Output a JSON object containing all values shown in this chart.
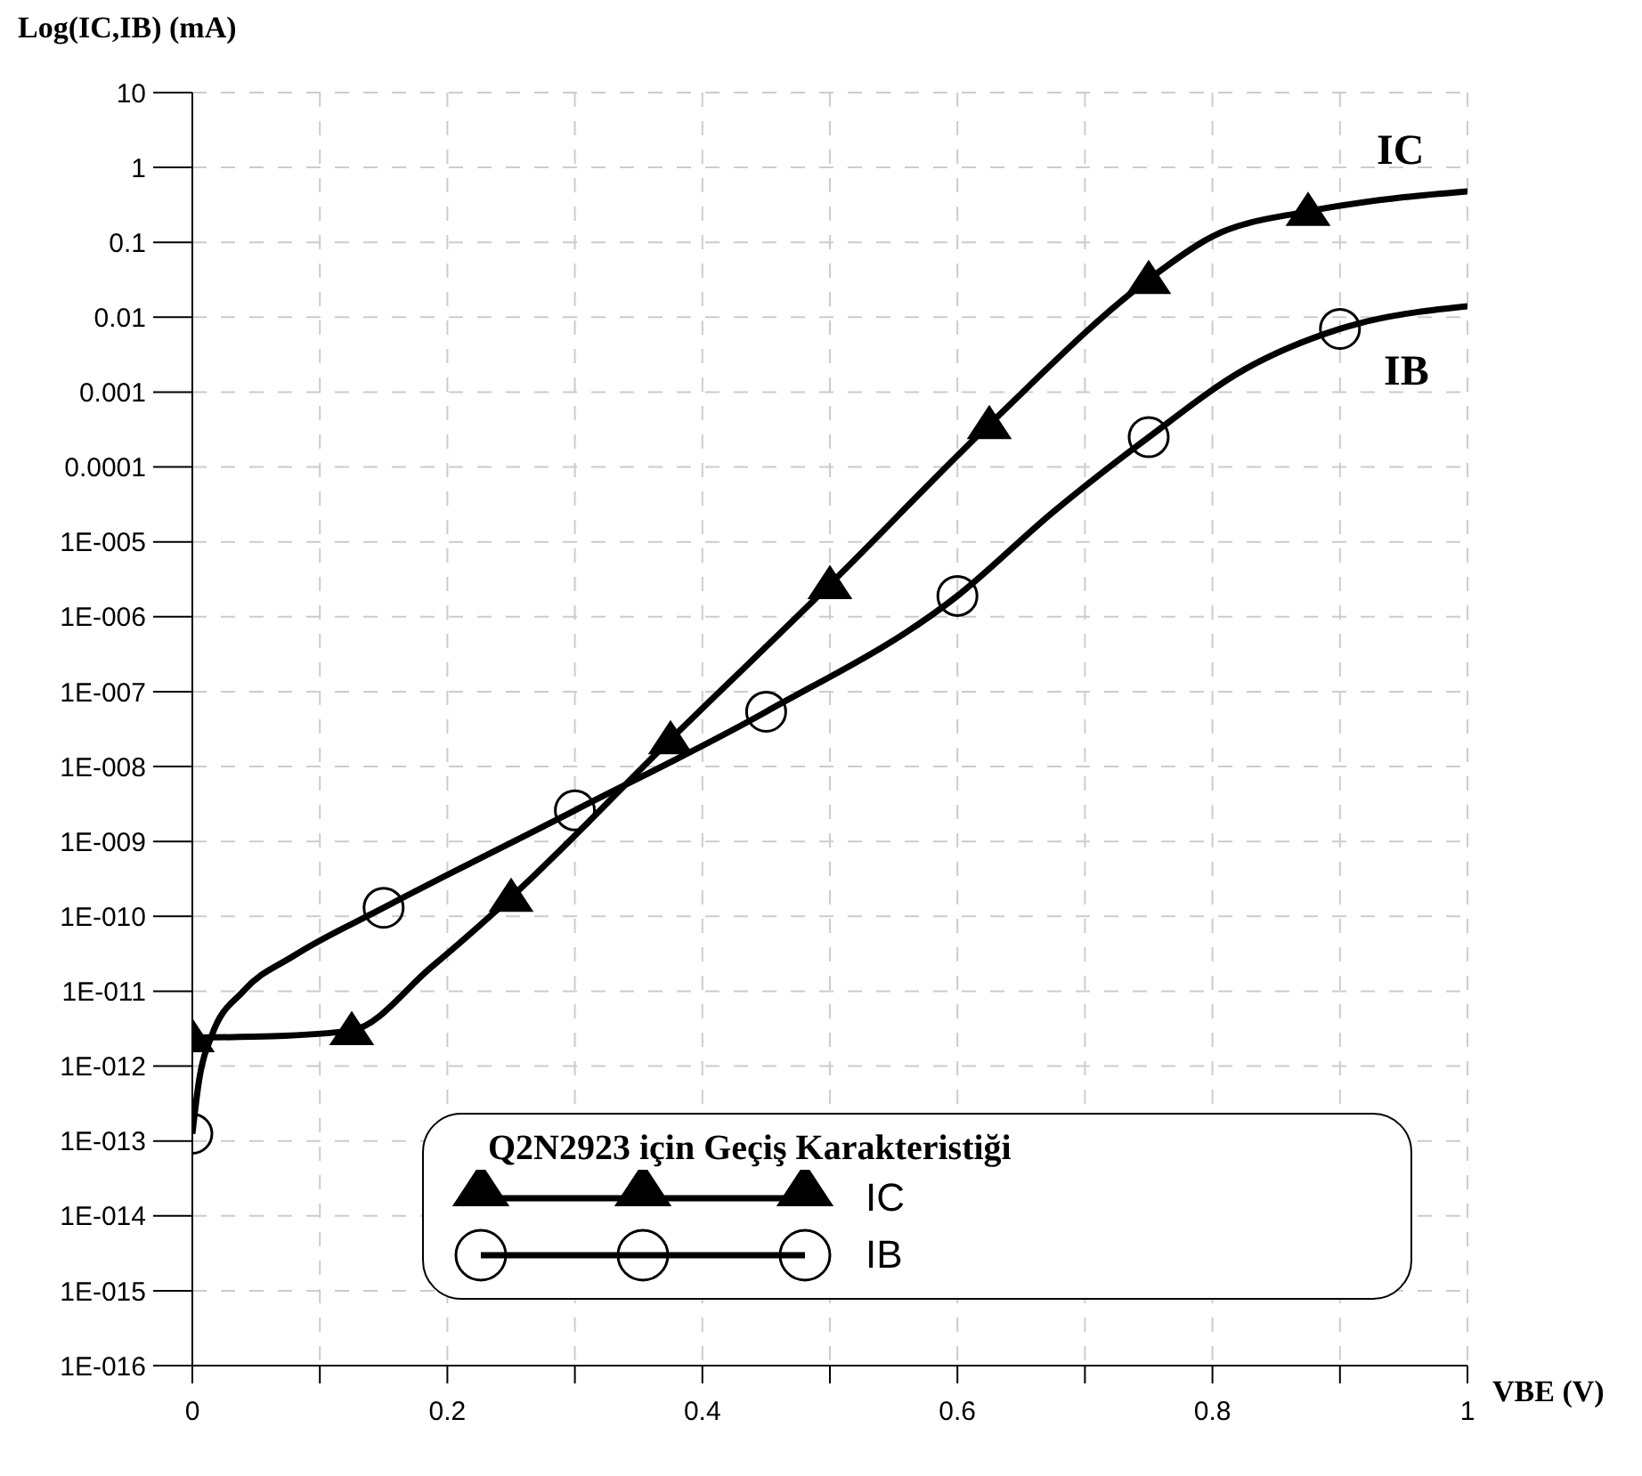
{
  "chart_data": {
    "type": "line",
    "xlabel": "VBE (V)",
    "ylabel": "Log(IC,IB) (mA)",
    "legend_title": "Q2N2923 için Geçiş Karakteristiği",
    "log": "y",
    "grid": true,
    "legend": "bottom",
    "xlim": [
      0,
      1
    ],
    "xticks": [
      0,
      {
        "value": 0.1,
        "label": null
      },
      0.2,
      {
        "value": 0.3,
        "label": null
      },
      0.4,
      {
        "value": 0.5,
        "label": null
      },
      0.6,
      {
        "value": 0.7,
        "label": null
      },
      0.8,
      {
        "value": 0.9,
        "label": null
      },
      1
    ],
    "ylim": [
      1e-16,
      10
    ],
    "yticks": [
      10,
      1,
      0.1,
      0.01,
      0.001,
      0.0001,
      {
        "value": 1e-05,
        "label": "1E-005"
      },
      {
        "value": 1e-06,
        "label": "1E-006"
      },
      {
        "value": 1e-07,
        "label": "1E-007"
      },
      {
        "value": 1e-08,
        "label": "1E-008"
      },
      {
        "value": 1e-09,
        "label": "1E-009"
      },
      {
        "value": 1e-10,
        "label": "1E-010"
      },
      {
        "value": 1e-11,
        "label": "1E-011"
      },
      {
        "value": 1e-12,
        "label": "1E-012"
      },
      {
        "value": 1e-13,
        "label": "1E-013"
      },
      {
        "value": 1e-14,
        "label": "1E-014"
      },
      {
        "value": 1e-15,
        "label": "1E-015"
      },
      {
        "value": 1e-16,
        "label": "1E-016"
      }
    ],
    "series": [
      {
        "color": "#000000",
        "marker": "none",
        "x": [
          0,
          0.0625,
          0.125,
          0.1875,
          0.25,
          0.375,
          0.5,
          0.625,
          0.75,
          0.8,
          0.875,
          0.95,
          1
        ],
        "values": [
          2.4e-12,
          2.5e-12,
          3e-12,
          2.1e-11,
          1.8e-10,
          2.3e-08,
          2.7e-06,
          0.00037,
          0.032,
          0.12,
          0.26,
          0.4,
          0.48
        ]
      },
      {
        "color": "#000000",
        "marker": "none",
        "x": [
          0,
          0.005,
          0.015,
          0.04,
          0.08,
          0.15,
          0.3,
          0.45,
          0.6,
          0.675,
          0.75,
          0.825,
          0.9,
          1
        ],
        "values": [
          1.25e-13,
          6e-13,
          2.5e-12,
          1e-11,
          3e-11,
          1.3e-10,
          2.6e-09,
          5.4e-08,
          1.9e-06,
          2.5e-05,
          0.00025,
          0.002,
          0.007,
          0.014
        ]
      },
      {
        "type": "scatter",
        "name": "IC",
        "color": "#000000",
        "marker": "triangle",
        "x": [
          0,
          0.125,
          0.25,
          0.375,
          0.5,
          0.625,
          0.75,
          0.875
        ],
        "values": [
          2.4e-12,
          3e-12,
          1.8e-10,
          2.3e-08,
          2.7e-06,
          0.00037,
          0.032,
          0.26
        ]
      },
      {
        "type": "scatter",
        "name": "IB",
        "color": "#000000",
        "marker": "circle",
        "x": [
          0,
          0.15,
          0.3,
          0.45,
          0.6,
          0.75,
          0.9
        ],
        "values": [
          1.25e-13,
          1.3e-10,
          2.6e-09,
          5.4e-08,
          1.9e-06,
          0.00025,
          0.007
        ]
      }
    ],
    "annotations": [
      "IC",
      "IB"
    ]
  }
}
